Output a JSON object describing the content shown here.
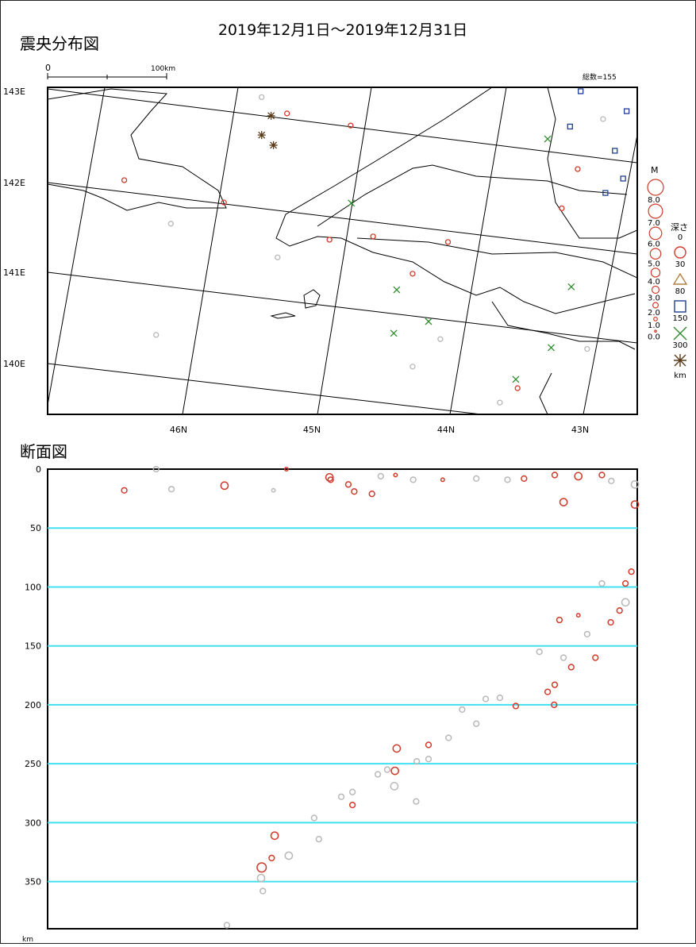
{
  "header": {
    "title": "2019年12月1日～2019年12月31日",
    "map_title": "震央分布図",
    "section_title": "断面図",
    "scale_zero": "0",
    "scale_label": "100km",
    "total": "総数=155",
    "depth_unit": "km"
  },
  "map": {
    "left_labels": [
      "143E",
      "142E",
      "141E",
      "140E"
    ],
    "bottom_labels": [
      "46N",
      "45N",
      "44N",
      "43N"
    ],
    "legend": {
      "m_title": "M",
      "m_labels": [
        "8.0",
        "7.0",
        "6.0",
        "5.0",
        "4.0",
        "3.0",
        "2.0",
        "1.0",
        "0.0"
      ],
      "depth_title": "深さ",
      "depth_labels": [
        "0",
        "30",
        "80",
        "150",
        "300"
      ],
      "depth_unit": "km"
    },
    "xlim": [
      0,
      100
    ],
    "ylim": [
      0,
      100
    ],
    "groups": [
      {
        "shape": "circle",
        "color": "#d03a2a",
        "x": [
          51.4,
          47.8,
          29.9,
          13,
          40.6,
          87.2,
          89.9,
          79.7,
          61.9,
          67.9,
          55.2
        ],
        "y": [
          11.7,
          46.6,
          35.2,
          28.4,
          8,
          37,
          25,
          92,
          57,
          47.3,
          45.6
        ]
      },
      {
        "shape": "circle",
        "color": "#b8b8b8",
        "x": [
          18.4,
          20.9,
          36.3,
          76.7,
          66.6,
          61.9,
          94.2,
          91.5,
          39
        ],
        "y": [
          75.7,
          41.7,
          3,
          96.4,
          77,
          85.4,
          9.7,
          80,
          52
        ]
      },
      {
        "shape": "cross",
        "color": "#2e8b2e",
        "x": [
          51.5,
          64.6,
          58.7,
          79.4,
          85.4,
          88.8,
          84.8,
          59.2
        ],
        "y": [
          35.4,
          71.6,
          75.2,
          89.3,
          79.6,
          61,
          15.8,
          61.9
        ]
      },
      {
        "shape": "square",
        "color": "#1f3f8f",
        "x": [
          90.4,
          98.2,
          96.2,
          94.6,
          97.6,
          88.6
        ],
        "y": [
          1.2,
          7.3,
          19.4,
          32.3,
          27.9,
          12
        ]
      },
      {
        "shape": "star",
        "color": "#5a3a1a",
        "x": [
          36.3,
          38.3,
          37.9
        ],
        "y": [
          14.6,
          17.7,
          8.7
        ]
      }
    ]
  },
  "section": {
    "ylim": [
      0,
      390
    ],
    "xlim": [
      0,
      100
    ],
    "yticks": [
      0,
      50,
      100,
      150,
      200,
      250,
      300,
      350
    ],
    "series": [
      {
        "color": "#d03a2a",
        "x": [
          13,
          30,
          40.5,
          47.8,
          48,
          51,
          52,
          55,
          59,
          67,
          80.8,
          86,
          87.5,
          90,
          94,
          99.6,
          99,
          98,
          97,
          95.5,
          90,
          86.8,
          92.9,
          88.8,
          86,
          84.8,
          85.9,
          79.4,
          64.6,
          59.2,
          58.9,
          51.7,
          38.5,
          38,
          36.3
        ],
        "values": [
          18,
          14,
          0,
          7,
          9,
          13,
          19,
          21,
          5,
          9,
          8,
          5,
          28,
          6,
          5,
          30,
          87,
          97,
          120,
          130,
          124,
          128,
          160,
          168,
          183,
          189,
          200,
          201,
          234,
          237,
          256,
          285,
          311,
          330,
          338
        ],
        "sizes": [
          2,
          3,
          1,
          3,
          2,
          2,
          2,
          2,
          1,
          1,
          2,
          2,
          3,
          3,
          2,
          3,
          2,
          2,
          2,
          2,
          1,
          2,
          2,
          2,
          2,
          2,
          2,
          2,
          2,
          3,
          3,
          2,
          3,
          2,
          4
        ]
      },
      {
        "color": "#b8b8b8",
        "x": [
          18.4,
          21,
          38.3,
          56.5,
          62,
          72.7,
          78,
          95.6,
          99.6,
          94,
          98,
          91.5,
          83.4,
          87.5,
          76.7,
          74.3,
          70.3,
          68,
          72.7,
          64.6,
          62.6,
          57.6,
          56,
          58.8,
          62.5,
          51.7,
          49.8,
          45.2,
          46,
          40.9,
          36.2,
          36.5,
          30.4
        ],
        "values": [
          0,
          17,
          18,
          6,
          9,
          8,
          9,
          10,
          13,
          97,
          113,
          140,
          155,
          160,
          194,
          195,
          204,
          228,
          216,
          246,
          248,
          255,
          259,
          269,
          282,
          274,
          278,
          296,
          314,
          328,
          347,
          358,
          387
        ],
        "sizes": [
          2,
          2,
          1,
          2,
          2,
          2,
          2,
          2,
          3,
          2,
          3,
          2,
          2,
          2,
          2,
          2,
          2,
          2,
          2,
          2,
          2,
          2,
          2,
          3,
          2,
          2,
          2,
          2,
          2,
          3,
          3,
          2,
          2
        ]
      }
    ]
  }
}
